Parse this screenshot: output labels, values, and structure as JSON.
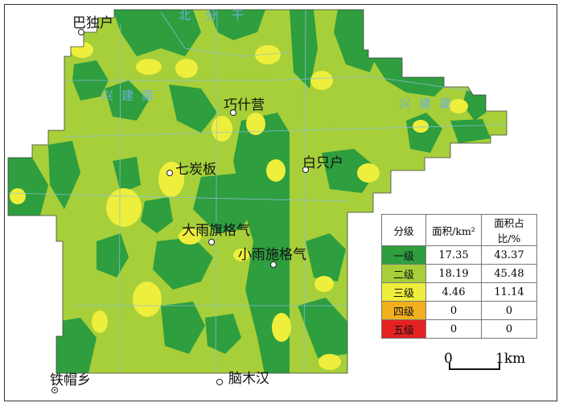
{
  "map": {
    "places": {
      "bashuhu": "巴独户",
      "qiaoshiying": "巧什营",
      "qitanban": "七炭板",
      "baizhihu": "白只户",
      "dayuqigeqi": "大雨旗格气",
      "xiaoyushigeqi": "小雨施格气",
      "tiemaoxiang": "铁帽乡",
      "naomuhan": "脑木汉"
    },
    "canals": {
      "north_main": "北分干",
      "west_canal": "兴建渠",
      "east_canal": "兴建渠"
    },
    "class_colors": {
      "class1": "#2e9e3f",
      "class2": "#a6cf3a",
      "class3": "#eeee3c",
      "class4": "#f2b01e",
      "class5": "#e52222"
    }
  },
  "legend": {
    "headers": [
      "分级",
      "面积/km²",
      "面积占比/%"
    ],
    "rows": [
      {
        "label": "一级",
        "area": "17.35",
        "pct": "43.37",
        "color": "#2e9e3f"
      },
      {
        "label": "二级",
        "area": "18.19",
        "pct": "45.48",
        "color": "#a6cf3a"
      },
      {
        "label": "三级",
        "area": "4.46",
        "pct": "11.14",
        "color": "#eeee3c"
      },
      {
        "label": "四级",
        "area": "0",
        "pct": "0",
        "color": "#f2b01e"
      },
      {
        "label": "五级",
        "area": "0",
        "pct": "0",
        "color": "#e52222"
      }
    ]
  },
  "scale": {
    "start": "0",
    "end": "1km"
  }
}
